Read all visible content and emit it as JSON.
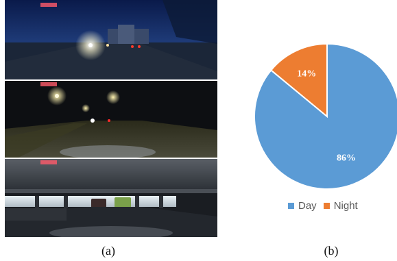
{
  "captions": {
    "a": "(a)",
    "b": "(b)"
  },
  "photos": [
    {
      "icon": "dusk-road-photo"
    },
    {
      "icon": "night-street-photo"
    },
    {
      "icon": "underpass-photo"
    }
  ],
  "chart_data": {
    "type": "pie",
    "categories": [
      "Day",
      "Night"
    ],
    "values": [
      86,
      14
    ],
    "data_labels": [
      "86%",
      "14%"
    ],
    "colors": {
      "Day": "#5B9BD5",
      "Night": "#ED7D31"
    },
    "legend_position": "bottom"
  },
  "colors": {
    "label_text": "#ffffff",
    "legend_text": "#595959"
  }
}
